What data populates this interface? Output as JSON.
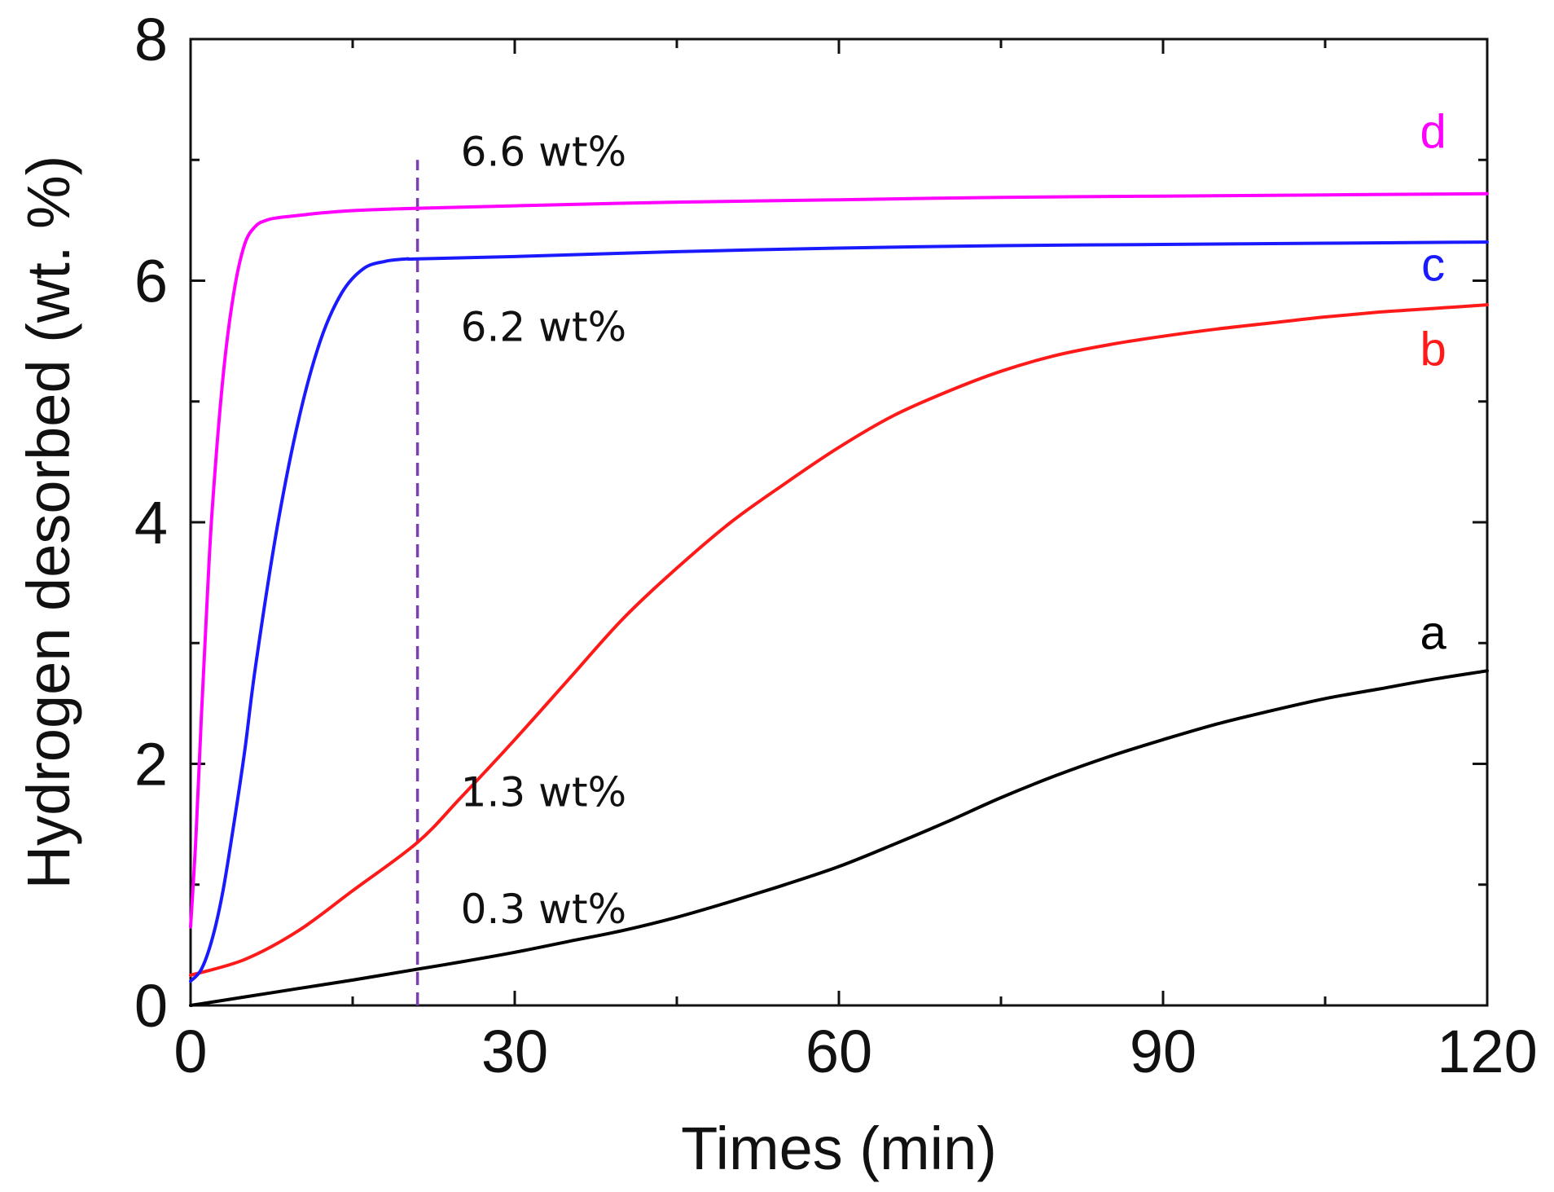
{
  "chart_data": {
    "type": "line",
    "title": "",
    "xlabel": "Times (min)",
    "ylabel": "Hydrogen desorbed (wt. %)",
    "xlim": [
      0,
      120
    ],
    "ylim": [
      0,
      8
    ],
    "x_ticks": [
      0,
      30,
      60,
      90,
      120
    ],
    "x_tick_labels": [
      "0",
      "30",
      "60",
      "90",
      "120"
    ],
    "x_minor_step": 15,
    "y_ticks": [
      0,
      2,
      4,
      6,
      8
    ],
    "y_tick_labels": [
      "0",
      "2",
      "4",
      "6",
      "8"
    ],
    "y_minor_step": 1,
    "grid": false,
    "series": [
      {
        "name": "a",
        "color": "#000000",
        "x": [
          0,
          5,
          10,
          15,
          21,
          25,
          30,
          35,
          40,
          45,
          50,
          55,
          60,
          65,
          70,
          75,
          80,
          85,
          90,
          95,
          100,
          105,
          110,
          115,
          120
        ],
        "y": [
          0,
          0.07,
          0.14,
          0.21,
          0.3,
          0.36,
          0.44,
          0.53,
          0.62,
          0.73,
          0.86,
          1.0,
          1.15,
          1.33,
          1.52,
          1.72,
          1.9,
          2.06,
          2.2,
          2.33,
          2.44,
          2.54,
          2.62,
          2.7,
          2.77
        ]
      },
      {
        "name": "b",
        "color": "#ff1a1a",
        "x": [
          0,
          5,
          10,
          15,
          21,
          25,
          30,
          35,
          40,
          45,
          50,
          55,
          60,
          65,
          70,
          75,
          80,
          85,
          90,
          95,
          100,
          105,
          110,
          115,
          120
        ],
        "y": [
          0.25,
          0.38,
          0.62,
          0.95,
          1.35,
          1.72,
          2.2,
          2.7,
          3.2,
          3.62,
          4.0,
          4.32,
          4.62,
          4.88,
          5.08,
          5.25,
          5.38,
          5.47,
          5.54,
          5.6,
          5.65,
          5.7,
          5.74,
          5.77,
          5.8
        ]
      },
      {
        "name": "c",
        "color": "#1a1aff",
        "x": [
          0,
          1,
          2,
          3,
          4,
          5,
          6,
          8,
          10,
          12,
          14,
          16,
          18,
          20,
          21,
          30,
          45,
          60,
          75,
          90,
          105,
          120
        ],
        "y": [
          0.2,
          0.3,
          0.55,
          0.95,
          1.5,
          2.1,
          2.8,
          3.95,
          4.85,
          5.5,
          5.9,
          6.1,
          6.16,
          6.18,
          6.18,
          6.2,
          6.24,
          6.27,
          6.29,
          6.3,
          6.31,
          6.32
        ]
      },
      {
        "name": "d",
        "color": "#ff00ff",
        "x": [
          0,
          0.5,
          1,
          1.5,
          2,
          3,
          4,
          5,
          6,
          7,
          8,
          10,
          12,
          15,
          21,
          30,
          45,
          60,
          75,
          90,
          105,
          120
        ],
        "y": [
          0.65,
          1.4,
          2.4,
          3.3,
          4.1,
          5.2,
          5.9,
          6.3,
          6.45,
          6.5,
          6.52,
          6.54,
          6.56,
          6.58,
          6.6,
          6.62,
          6.65,
          6.67,
          6.69,
          6.7,
          6.71,
          6.72
        ]
      }
    ],
    "series_label_positions": [
      {
        "name": "a",
        "x": 115,
        "y": 2.95
      },
      {
        "name": "b",
        "x": 115,
        "y": 5.3
      },
      {
        "name": "c",
        "x": 115,
        "y": 6.0
      },
      {
        "name": "d",
        "x": 115,
        "y": 7.1
      }
    ],
    "reference_line": {
      "x": 21,
      "y_from": 0,
      "y_to": 7.0,
      "color": "#7b3fb0",
      "style": "dashed"
    },
    "annotations": [
      {
        "text": "6.6 wt%",
        "x": 25,
        "y": 6.95
      },
      {
        "text": "6.2 wt%",
        "x": 25,
        "y": 5.5
      },
      {
        "text": "1.3 wt%",
        "x": 25,
        "y": 1.65
      },
      {
        "text": "0.3 wt%",
        "x": 25,
        "y": 0.68
      }
    ]
  }
}
